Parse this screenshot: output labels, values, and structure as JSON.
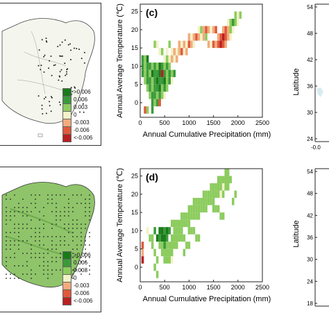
{
  "legend": {
    "labels": [
      ">0.006",
      "0.006",
      "0.003",
      "0",
      "-0.003",
      "-0.006",
      "<-0.006"
    ],
    "colors": [
      "#1a7a1a",
      "#3a9a3a",
      "#8ccc5e",
      "#f2f2c6",
      "#f2ab7c",
      "#e0593a",
      "#b81f1f"
    ]
  },
  "panels": {
    "c": {
      "label": "(c)"
    },
    "d": {
      "label": "(d)"
    }
  },
  "right_panels": {
    "ylabel": "Latitude",
    "top_ticks": [
      "54",
      "48",
      "42",
      "36",
      "30",
      "24"
    ],
    "bottom_ticks": [
      "54",
      "48",
      "42",
      "36",
      "30",
      "24",
      "18"
    ],
    "x_tick": "-0.0"
  },
  "chart_data": [
    {
      "type": "heatmap",
      "panel": "(c)",
      "xlabel": "Annual Cumulative Precipitation (mm)",
      "ylabel": "Annual Average Temperature (℃)",
      "xticks": [
        "0",
        "500",
        "1000",
        "1500",
        "2000",
        "2500"
      ],
      "yticks": [
        "0",
        "5",
        "10",
        "15",
        "20",
        "25"
      ],
      "xlim": [
        0,
        2500
      ],
      "ylim": [
        -4,
        27
      ],
      "color_classes": [
        "#1a7a1a",
        "#3a9a3a",
        "#8ccc5e",
        "#f2f2c6",
        "#f2ab7c",
        "#e0593a",
        "#b81f1f"
      ],
      "cells": [
        [
          50,
          12,
          1
        ],
        [
          100,
          12,
          2
        ],
        [
          150,
          12,
          0
        ],
        [
          50,
          10,
          1
        ],
        [
          100,
          10,
          2
        ],
        [
          150,
          10,
          1
        ],
        [
          200,
          10,
          1
        ],
        [
          250,
          10,
          2
        ],
        [
          300,
          10,
          1
        ],
        [
          350,
          10,
          2
        ],
        [
          400,
          10,
          0
        ],
        [
          450,
          10,
          1
        ],
        [
          500,
          10,
          2
        ],
        [
          550,
          10,
          1
        ],
        [
          600,
          10,
          2
        ],
        [
          50,
          8,
          1
        ],
        [
          100,
          8,
          2
        ],
        [
          150,
          8,
          1
        ],
        [
          200,
          8,
          2
        ],
        [
          250,
          8,
          0
        ],
        [
          300,
          8,
          1
        ],
        [
          350,
          8,
          1
        ],
        [
          400,
          8,
          0
        ],
        [
          450,
          8,
          6
        ],
        [
          500,
          8,
          1
        ],
        [
          550,
          8,
          2
        ],
        [
          600,
          8,
          1
        ],
        [
          650,
          8,
          2
        ],
        [
          700,
          8,
          1
        ],
        [
          100,
          6,
          2
        ],
        [
          150,
          6,
          1
        ],
        [
          200,
          6,
          1
        ],
        [
          250,
          6,
          2
        ],
        [
          300,
          6,
          1
        ],
        [
          350,
          6,
          0
        ],
        [
          400,
          6,
          1
        ],
        [
          450,
          6,
          1
        ],
        [
          500,
          6,
          0
        ],
        [
          550,
          6,
          2
        ],
        [
          600,
          6,
          1
        ],
        [
          650,
          6,
          3
        ],
        [
          150,
          4,
          2
        ],
        [
          200,
          4,
          1
        ],
        [
          250,
          4,
          2
        ],
        [
          300,
          4,
          1
        ],
        [
          350,
          4,
          1
        ],
        [
          400,
          4,
          0
        ],
        [
          450,
          4,
          2
        ],
        [
          500,
          4,
          1
        ],
        [
          550,
          4,
          2
        ],
        [
          200,
          2,
          2
        ],
        [
          250,
          2,
          1
        ],
        [
          300,
          2,
          1
        ],
        [
          350,
          2,
          2
        ],
        [
          400,
          2,
          1
        ],
        [
          450,
          2,
          2
        ],
        [
          500,
          2,
          3
        ],
        [
          250,
          0,
          1
        ],
        [
          300,
          0,
          2
        ],
        [
          350,
          0,
          1
        ],
        [
          400,
          0,
          5
        ],
        [
          100,
          -2,
          5
        ],
        [
          150,
          -2,
          2
        ],
        [
          250,
          -2,
          1
        ],
        [
          500,
          12,
          3
        ],
        [
          550,
          12,
          2
        ],
        [
          600,
          12,
          3
        ],
        [
          650,
          12,
          4
        ],
        [
          700,
          12,
          3
        ],
        [
          750,
          12,
          4
        ],
        [
          650,
          14,
          3
        ],
        [
          700,
          14,
          4
        ],
        [
          750,
          14,
          3
        ],
        [
          800,
          14,
          4
        ],
        [
          850,
          14,
          5
        ],
        [
          900,
          14,
          3
        ],
        [
          950,
          14,
          4
        ],
        [
          800,
          16,
          4
        ],
        [
          850,
          16,
          3
        ],
        [
          900,
          16,
          4
        ],
        [
          950,
          16,
          3
        ],
        [
          1000,
          16,
          5
        ],
        [
          1050,
          16,
          4
        ],
        [
          1100,
          16,
          3
        ],
        [
          1000,
          18,
          4
        ],
        [
          1050,
          18,
          3
        ],
        [
          1100,
          18,
          4
        ],
        [
          1150,
          18,
          5
        ],
        [
          1200,
          18,
          4
        ],
        [
          1250,
          18,
          3
        ],
        [
          1300,
          18,
          4
        ],
        [
          1350,
          18,
          2
        ],
        [
          1200,
          20,
          3
        ],
        [
          1250,
          20,
          2
        ],
        [
          1300,
          20,
          4
        ],
        [
          1350,
          20,
          5
        ],
        [
          1400,
          20,
          4
        ],
        [
          1450,
          20,
          3
        ],
        [
          1500,
          20,
          4
        ],
        [
          1550,
          20,
          5
        ],
        [
          1400,
          16,
          4
        ],
        [
          1450,
          16,
          3
        ],
        [
          1500,
          16,
          5
        ],
        [
          1550,
          16,
          4
        ],
        [
          1600,
          16,
          5
        ],
        [
          1650,
          16,
          6
        ],
        [
          1700,
          16,
          5
        ],
        [
          1750,
          16,
          4
        ],
        [
          1600,
          18,
          4
        ],
        [
          1650,
          18,
          5
        ],
        [
          1700,
          18,
          6
        ],
        [
          1750,
          18,
          5
        ],
        [
          1800,
          18,
          4
        ],
        [
          1850,
          18,
          3
        ],
        [
          1700,
          20,
          4
        ],
        [
          1750,
          20,
          5
        ],
        [
          1800,
          20,
          4
        ],
        [
          1850,
          20,
          2
        ],
        [
          1900,
          20,
          3
        ],
        [
          1800,
          22,
          3
        ],
        [
          1850,
          22,
          2
        ],
        [
          1900,
          22,
          1
        ],
        [
          1950,
          22,
          2
        ],
        [
          2000,
          22,
          3
        ],
        [
          1950,
          24,
          2
        ],
        [
          2000,
          24,
          3
        ],
        [
          2050,
          24,
          2
        ],
        [
          300,
          16,
          2
        ],
        [
          350,
          16,
          3
        ],
        [
          400,
          14,
          3
        ],
        [
          450,
          14,
          2
        ],
        [
          550,
          14,
          3
        ],
        [
          600,
          16,
          2
        ]
      ]
    },
    {
      "type": "heatmap",
      "panel": "(d)",
      "xlabel": "Annual Cumulative Precipitation (mm)",
      "ylabel": "Annual Average Temperature (℃)",
      "xticks": [
        "0",
        "500",
        "1000",
        "1500",
        "2000",
        "2500"
      ],
      "yticks": [
        "0",
        "5",
        "10",
        "15",
        "20",
        "25"
      ],
      "xlim": [
        0,
        2500
      ],
      "ylim": [
        -4,
        27
      ],
      "color_classes": [
        "#1a7a1a",
        "#3a9a3a",
        "#8ccc5e",
        "#f2f2c6",
        "#f2ab7c",
        "#e0593a",
        "#b81f1f"
      ],
      "cells": [
        [
          50,
          6,
          5
        ],
        [
          50,
          4,
          4
        ],
        [
          50,
          2,
          6
        ],
        [
          150,
          10,
          3
        ],
        [
          200,
          8,
          2
        ],
        [
          250,
          6,
          2
        ],
        [
          300,
          4,
          2
        ],
        [
          350,
          2,
          2
        ],
        [
          300,
          0,
          2
        ],
        [
          350,
          -2,
          2
        ],
        [
          400,
          10,
          0
        ],
        [
          450,
          10,
          0
        ],
        [
          500,
          10,
          1
        ],
        [
          550,
          10,
          0
        ],
        [
          600,
          10,
          1
        ],
        [
          350,
          8,
          0
        ],
        [
          400,
          8,
          1
        ],
        [
          450,
          8,
          0
        ],
        [
          500,
          8,
          0
        ],
        [
          550,
          8,
          1
        ],
        [
          300,
          10,
          1
        ],
        [
          250,
          8,
          2
        ],
        [
          400,
          6,
          2
        ],
        [
          450,
          6,
          2
        ],
        [
          500,
          6,
          1
        ],
        [
          550,
          6,
          2
        ],
        [
          600,
          6,
          2
        ],
        [
          650,
          6,
          2
        ],
        [
          700,
          6,
          2
        ],
        [
          750,
          6,
          2
        ],
        [
          450,
          4,
          2
        ],
        [
          500,
          4,
          2
        ],
        [
          550,
          4,
          2
        ],
        [
          600,
          4,
          2
        ],
        [
          650,
          4,
          2
        ],
        [
          500,
          2,
          2
        ],
        [
          550,
          2,
          2
        ],
        [
          600,
          2,
          2
        ],
        [
          650,
          2,
          3
        ],
        [
          650,
          8,
          2
        ],
        [
          700,
          8,
          2
        ],
        [
          750,
          8,
          2
        ],
        [
          800,
          8,
          2
        ],
        [
          850,
          8,
          2
        ],
        [
          900,
          8,
          2
        ],
        [
          700,
          10,
          2
        ],
        [
          750,
          10,
          2
        ],
        [
          800,
          10,
          2
        ],
        [
          850,
          10,
          2
        ],
        [
          650,
          12,
          2
        ],
        [
          700,
          12,
          2
        ],
        [
          750,
          12,
          2
        ],
        [
          800,
          12,
          2
        ],
        [
          850,
          12,
          2
        ],
        [
          900,
          12,
          2
        ],
        [
          950,
          12,
          2
        ],
        [
          1000,
          12,
          2
        ],
        [
          850,
          14,
          2
        ],
        [
          900,
          14,
          2
        ],
        [
          950,
          14,
          2
        ],
        [
          1000,
          14,
          2
        ],
        [
          1050,
          14,
          2
        ],
        [
          1100,
          14,
          2
        ],
        [
          1150,
          14,
          2
        ],
        [
          1200,
          14,
          2
        ],
        [
          1000,
          16,
          2
        ],
        [
          1050,
          16,
          2
        ],
        [
          1100,
          16,
          2
        ],
        [
          1150,
          16,
          2
        ],
        [
          1200,
          16,
          2
        ],
        [
          1250,
          16,
          2
        ],
        [
          1300,
          16,
          2
        ],
        [
          1350,
          16,
          2
        ],
        [
          1100,
          18,
          2
        ],
        [
          1150,
          18,
          2
        ],
        [
          1200,
          18,
          2
        ],
        [
          1250,
          18,
          2
        ],
        [
          1300,
          18,
          2
        ],
        [
          1350,
          18,
          2
        ],
        [
          1400,
          18,
          2
        ],
        [
          1450,
          18,
          2
        ],
        [
          1500,
          18,
          2
        ],
        [
          1300,
          20,
          2
        ],
        [
          1350,
          20,
          2
        ],
        [
          1400,
          20,
          2
        ],
        [
          1450,
          20,
          2
        ],
        [
          1500,
          20,
          2
        ],
        [
          1550,
          20,
          2
        ],
        [
          1600,
          20,
          2
        ],
        [
          1650,
          20,
          3
        ],
        [
          1700,
          20,
          2
        ],
        [
          1450,
          22,
          2
        ],
        [
          1500,
          22,
          2
        ],
        [
          1550,
          22,
          2
        ],
        [
          1600,
          22,
          2
        ],
        [
          1650,
          22,
          2
        ],
        [
          1700,
          22,
          3
        ],
        [
          1750,
          22,
          2
        ],
        [
          1800,
          22,
          2
        ],
        [
          1600,
          24,
          2
        ],
        [
          1650,
          24,
          2
        ],
        [
          1700,
          24,
          2
        ],
        [
          1750,
          24,
          2
        ],
        [
          1800,
          24,
          2
        ],
        [
          1850,
          24,
          2
        ],
        [
          1750,
          26,
          2
        ],
        [
          1800,
          26,
          2
        ],
        [
          1500,
          16,
          2
        ],
        [
          1550,
          16,
          2
        ],
        [
          1600,
          16,
          2
        ],
        [
          1650,
          14,
          2
        ],
        [
          1700,
          14,
          2
        ],
        [
          1900,
          18,
          2
        ],
        [
          1950,
          20,
          2
        ],
        [
          1000,
          10,
          2
        ],
        [
          1050,
          10,
          2
        ],
        [
          1100,
          10,
          2
        ],
        [
          1150,
          8,
          2
        ],
        [
          1200,
          8,
          2
        ],
        [
          950,
          6,
          2
        ],
        [
          1000,
          6,
          2
        ],
        [
          900,
          4,
          2
        ]
      ]
    }
  ]
}
